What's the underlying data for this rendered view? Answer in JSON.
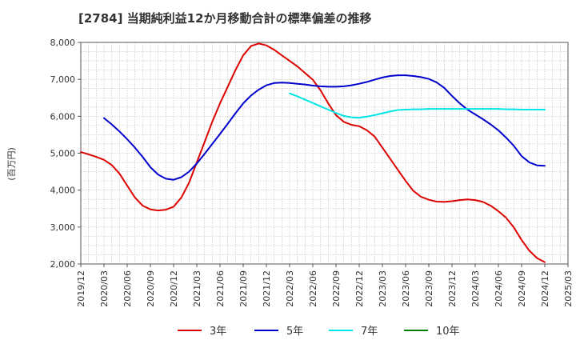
{
  "title": "[2784]  当期純利益12か月移動合計の標準偏差の推移",
  "chart_data": {
    "type": "line",
    "ylabel": "(百万円)",
    "xlabel": "",
    "ylim": [
      2000,
      8000
    ],
    "xlim": [
      "2019-12",
      "2025-03"
    ],
    "y_ticks": [
      2000,
      3000,
      4000,
      5000,
      6000,
      7000,
      8000
    ],
    "y_tick_labels": [
      "2,000",
      "3,000",
      "4,000",
      "5,000",
      "6,000",
      "7,000",
      "8,000"
    ],
    "x_ticks": [
      "2019-12",
      "2020-03",
      "2020-06",
      "2020-09",
      "2020-12",
      "2021-03",
      "2021-06",
      "2021-09",
      "2021-12",
      "2022-03",
      "2022-06",
      "2022-09",
      "2022-12",
      "2023-03",
      "2023-06",
      "2023-09",
      "2023-12",
      "2024-03",
      "2024-06",
      "2024-09",
      "2024-12",
      "2025-03"
    ],
    "x_tick_labels": [
      "2019/12",
      "2020/03",
      "2020/06",
      "2020/09",
      "2020/12",
      "2021/03",
      "2021/06",
      "2021/09",
      "2021/12",
      "2022/03",
      "2022/06",
      "2022/09",
      "2022/12",
      "2023/03",
      "2023/06",
      "2023/09",
      "2023/12",
      "2024/03",
      "2024/06",
      "2024/09",
      "2024/12",
      "2025/03"
    ],
    "grid": true,
    "legend_position": "bottom",
    "series": [
      {
        "name": "3年",
        "color": "#dd0000",
        "points": [
          [
            "2019-12",
            5030
          ],
          [
            "2020-01",
            4970
          ],
          [
            "2020-02",
            4900
          ],
          [
            "2020-03",
            4820
          ],
          [
            "2020-04",
            4680
          ],
          [
            "2020-05",
            4450
          ],
          [
            "2020-06",
            4120
          ],
          [
            "2020-07",
            3800
          ],
          [
            "2020-08",
            3580
          ],
          [
            "2020-09",
            3480
          ],
          [
            "2020-10",
            3450
          ],
          [
            "2020-11",
            3470
          ],
          [
            "2020-12",
            3550
          ],
          [
            "2021-01",
            3800
          ],
          [
            "2021-02",
            4200
          ],
          [
            "2021-03",
            4750
          ],
          [
            "2021-04",
            5300
          ],
          [
            "2021-05",
            5850
          ],
          [
            "2021-06",
            6350
          ],
          [
            "2021-07",
            6800
          ],
          [
            "2021-08",
            7250
          ],
          [
            "2021-09",
            7650
          ],
          [
            "2021-10",
            7900
          ],
          [
            "2021-11",
            7970
          ],
          [
            "2021-12",
            7920
          ],
          [
            "2022-01",
            7800
          ],
          [
            "2022-02",
            7650
          ],
          [
            "2022-03",
            7500
          ],
          [
            "2022-04",
            7350
          ],
          [
            "2022-05",
            7170
          ],
          [
            "2022-06",
            6990
          ],
          [
            "2022-07",
            6700
          ],
          [
            "2022-08",
            6350
          ],
          [
            "2022-09",
            6030
          ],
          [
            "2022-10",
            5850
          ],
          [
            "2022-11",
            5770
          ],
          [
            "2022-12",
            5730
          ],
          [
            "2023-01",
            5620
          ],
          [
            "2023-02",
            5450
          ],
          [
            "2023-03",
            5150
          ],
          [
            "2023-04",
            4850
          ],
          [
            "2023-05",
            4550
          ],
          [
            "2023-06",
            4250
          ],
          [
            "2023-07",
            3980
          ],
          [
            "2023-08",
            3820
          ],
          [
            "2023-09",
            3740
          ],
          [
            "2023-10",
            3690
          ],
          [
            "2023-11",
            3680
          ],
          [
            "2023-12",
            3700
          ],
          [
            "2024-01",
            3730
          ],
          [
            "2024-02",
            3750
          ],
          [
            "2024-03",
            3730
          ],
          [
            "2024-04",
            3680
          ],
          [
            "2024-05",
            3580
          ],
          [
            "2024-06",
            3430
          ],
          [
            "2024-07",
            3250
          ],
          [
            "2024-08",
            2990
          ],
          [
            "2024-09",
            2650
          ],
          [
            "2024-10",
            2360
          ],
          [
            "2024-11",
            2160
          ],
          [
            "2024-12",
            2050
          ]
        ]
      },
      {
        "name": "5年",
        "color": "#0000cc",
        "points": [
          [
            "2020-03",
            5950
          ],
          [
            "2020-04",
            5780
          ],
          [
            "2020-05",
            5590
          ],
          [
            "2020-06",
            5380
          ],
          [
            "2020-07",
            5150
          ],
          [
            "2020-08",
            4900
          ],
          [
            "2020-09",
            4620
          ],
          [
            "2020-10",
            4420
          ],
          [
            "2020-11",
            4310
          ],
          [
            "2020-12",
            4280
          ],
          [
            "2021-01",
            4350
          ],
          [
            "2021-02",
            4500
          ],
          [
            "2021-03",
            4720
          ],
          [
            "2021-04",
            4980
          ],
          [
            "2021-05",
            5250
          ],
          [
            "2021-06",
            5520
          ],
          [
            "2021-07",
            5800
          ],
          [
            "2021-08",
            6080
          ],
          [
            "2021-09",
            6350
          ],
          [
            "2021-10",
            6560
          ],
          [
            "2021-11",
            6720
          ],
          [
            "2021-12",
            6840
          ],
          [
            "2022-01",
            6900
          ],
          [
            "2022-02",
            6910
          ],
          [
            "2022-03",
            6900
          ],
          [
            "2022-04",
            6880
          ],
          [
            "2022-05",
            6860
          ],
          [
            "2022-06",
            6830
          ],
          [
            "2022-07",
            6810
          ],
          [
            "2022-08",
            6800
          ],
          [
            "2022-09",
            6800
          ],
          [
            "2022-10",
            6810
          ],
          [
            "2022-11",
            6840
          ],
          [
            "2022-12",
            6880
          ],
          [
            "2023-01",
            6930
          ],
          [
            "2023-02",
            6990
          ],
          [
            "2023-03",
            7050
          ],
          [
            "2023-04",
            7090
          ],
          [
            "2023-05",
            7110
          ],
          [
            "2023-06",
            7110
          ],
          [
            "2023-07",
            7090
          ],
          [
            "2023-08",
            7060
          ],
          [
            "2023-09",
            7010
          ],
          [
            "2023-10",
            6920
          ],
          [
            "2023-11",
            6770
          ],
          [
            "2023-12",
            6550
          ],
          [
            "2024-01",
            6350
          ],
          [
            "2024-02",
            6180
          ],
          [
            "2024-03",
            6050
          ],
          [
            "2024-04",
            5920
          ],
          [
            "2024-05",
            5780
          ],
          [
            "2024-06",
            5620
          ],
          [
            "2024-07",
            5420
          ],
          [
            "2024-08",
            5200
          ],
          [
            "2024-09",
            4920
          ],
          [
            "2024-10",
            4750
          ],
          [
            "2024-11",
            4670
          ],
          [
            "2024-12",
            4660
          ]
        ]
      },
      {
        "name": "7年",
        "color": "#00e5e5",
        "points": [
          [
            "2022-03",
            6620
          ],
          [
            "2022-04",
            6540
          ],
          [
            "2022-05",
            6450
          ],
          [
            "2022-06",
            6360
          ],
          [
            "2022-07",
            6270
          ],
          [
            "2022-08",
            6180
          ],
          [
            "2022-09",
            6090
          ],
          [
            "2022-10",
            6010
          ],
          [
            "2022-11",
            5970
          ],
          [
            "2022-12",
            5960
          ],
          [
            "2023-01",
            5990
          ],
          [
            "2023-02",
            6030
          ],
          [
            "2023-03",
            6080
          ],
          [
            "2023-04",
            6130
          ],
          [
            "2023-05",
            6170
          ],
          [
            "2023-06",
            6180
          ],
          [
            "2023-07",
            6190
          ],
          [
            "2023-08",
            6190
          ],
          [
            "2023-09",
            6200
          ],
          [
            "2023-10",
            6200
          ],
          [
            "2023-11",
            6200
          ],
          [
            "2023-12",
            6200
          ],
          [
            "2024-01",
            6200
          ],
          [
            "2024-02",
            6200
          ],
          [
            "2024-03",
            6200
          ],
          [
            "2024-04",
            6200
          ],
          [
            "2024-05",
            6200
          ],
          [
            "2024-06",
            6200
          ],
          [
            "2024-07",
            6190
          ],
          [
            "2024-08",
            6190
          ],
          [
            "2024-09",
            6180
          ],
          [
            "2024-10",
            6180
          ],
          [
            "2024-11",
            6180
          ],
          [
            "2024-12",
            6180
          ]
        ]
      },
      {
        "name": "10年",
        "color": "#008000",
        "points": []
      }
    ]
  }
}
